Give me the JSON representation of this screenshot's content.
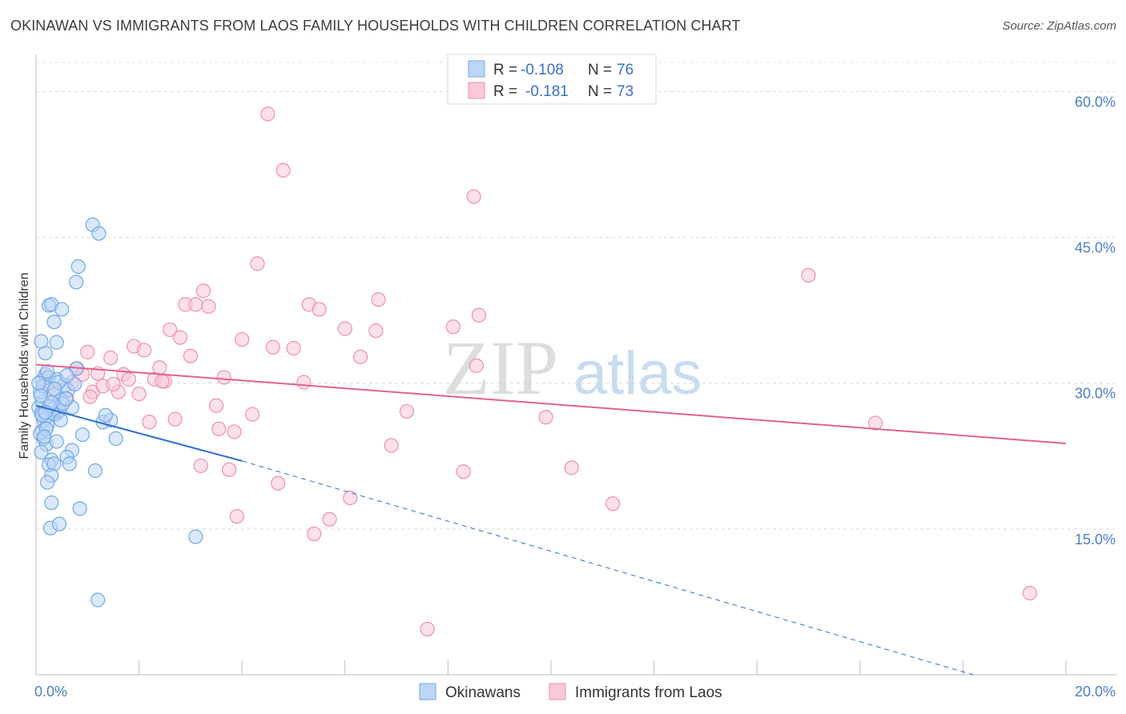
{
  "title": "OKINAWAN VS IMMIGRANTS FROM LAOS FAMILY HOUSEHOLDS WITH CHILDREN CORRELATION CHART",
  "source": "Source: ZipAtlas.com",
  "watermark": {
    "zip": "ZIP",
    "atlas": "atlas"
  },
  "chart_data": {
    "type": "scatter",
    "title": "OKINAWAN VS IMMIGRANTS FROM LAOS FAMILY HOUSEHOLDS WITH CHILDREN CORRELATION CHART",
    "xlabel": "",
    "ylabel": "Family Households with Children",
    "xlim": [
      0,
      20
    ],
    "ylim": [
      0,
      63
    ],
    "x_tick_labels": {
      "left": "0.0%",
      "right": "20.0%"
    },
    "x_minor_ticks": [
      2,
      4,
      6,
      8,
      10,
      12,
      14,
      16,
      18,
      20
    ],
    "y_ticks": [
      {
        "value": 15,
        "label": "15.0%"
      },
      {
        "value": 30,
        "label": "30.0%"
      },
      {
        "value": 45,
        "label": "45.0%"
      },
      {
        "value": 60,
        "label": "60.0%"
      }
    ],
    "legend": [
      {
        "name": "Okinawans",
        "r_label": "R = ",
        "r": "-0.108",
        "n_label": "N = ",
        "n": "76",
        "color": "#6fa8e8",
        "fill": "#bcd6f5"
      },
      {
        "name": "Immigrants from Laos",
        "r_label": "R = ",
        "r": "-0.181",
        "n_label": "N = ",
        "n": "73",
        "color": "#ee8eb0",
        "fill": "#f9c9d9"
      }
    ],
    "series": [
      {
        "name": "Okinawans",
        "color": "#6fa8e8",
        "trend": {
          "x0": 0.0,
          "y0": 27.7,
          "x1": 4.0,
          "y1": 22.0,
          "dash_x1": 18.2,
          "dash_y1": 0.0,
          "color": "#2d6fcc"
        },
        "points": [
          [
            0.05,
            27.5
          ],
          [
            0.1,
            26.9
          ],
          [
            0.12,
            25.1
          ],
          [
            0.08,
            24.8
          ],
          [
            0.15,
            24.3
          ],
          [
            0.2,
            23.7
          ],
          [
            0.1,
            22.9
          ],
          [
            0.3,
            22.1
          ],
          [
            0.25,
            21.6
          ],
          [
            0.35,
            21.7
          ],
          [
            0.3,
            20.5
          ],
          [
            0.22,
            19.8
          ],
          [
            0.3,
            17.7
          ],
          [
            0.28,
            15.1
          ],
          [
            0.45,
            15.5
          ],
          [
            0.12,
            30.3
          ],
          [
            0.18,
            30.9
          ],
          [
            0.25,
            30.6
          ],
          [
            0.4,
            30.4
          ],
          [
            0.55,
            29.8
          ],
          [
            0.62,
            29.3
          ],
          [
            0.35,
            28.8
          ],
          [
            0.48,
            28.3
          ],
          [
            0.7,
            27.5
          ],
          [
            0.12,
            28.1
          ],
          [
            0.3,
            27.3
          ],
          [
            0.42,
            27.1
          ],
          [
            0.38,
            26.8
          ],
          [
            0.2,
            26.5
          ],
          [
            0.15,
            26.2
          ],
          [
            0.22,
            25.7
          ],
          [
            0.18,
            33.1
          ],
          [
            0.1,
            34.3
          ],
          [
            0.4,
            34.2
          ],
          [
            0.35,
            36.3
          ],
          [
            0.25,
            38.0
          ],
          [
            0.3,
            38.1
          ],
          [
            0.5,
            37.6
          ],
          [
            0.78,
            40.4
          ],
          [
            0.82,
            42.0
          ],
          [
            1.1,
            46.3
          ],
          [
            1.22,
            45.4
          ],
          [
            0.75,
            29.9
          ],
          [
            0.78,
            31.5
          ],
          [
            0.7,
            23.1
          ],
          [
            0.6,
            22.4
          ],
          [
            0.65,
            21.7
          ],
          [
            0.9,
            24.7
          ],
          [
            0.85,
            17.1
          ],
          [
            1.15,
            21.0
          ],
          [
            1.3,
            26.0
          ],
          [
            1.45,
            26.2
          ],
          [
            1.55,
            24.3
          ],
          [
            1.35,
            26.7
          ],
          [
            1.2,
            7.7
          ],
          [
            3.1,
            14.2
          ],
          [
            0.08,
            29.1
          ],
          [
            0.14,
            29.7
          ],
          [
            0.45,
            27.2
          ],
          [
            0.52,
            27.9
          ],
          [
            0.32,
            26.9
          ],
          [
            0.2,
            25.3
          ],
          [
            0.16,
            24.5
          ],
          [
            0.26,
            27.6
          ],
          [
            0.58,
            28.4
          ],
          [
            0.44,
            30.1
          ],
          [
            0.05,
            30.0
          ],
          [
            0.22,
            31.2
          ],
          [
            0.36,
            29.4
          ],
          [
            0.12,
            26.7
          ],
          [
            0.4,
            24.0
          ],
          [
            0.09,
            28.7
          ],
          [
            0.6,
            30.8
          ],
          [
            0.3,
            28.0
          ],
          [
            0.18,
            27.0
          ],
          [
            0.48,
            26.2
          ]
        ]
      },
      {
        "name": "Immigrants from Laos",
        "color": "#ee8eb0",
        "trend": {
          "x0": 0.0,
          "y0": 31.9,
          "x1": 20.0,
          "y1": 23.8,
          "color": "#e0628e"
        },
        "points": [
          [
            0.3,
            29.0
          ],
          [
            0.5,
            27.9
          ],
          [
            0.7,
            30.1
          ],
          [
            0.8,
            31.5
          ],
          [
            0.9,
            30.9
          ],
          [
            1.0,
            33.2
          ],
          [
            1.1,
            29.1
          ],
          [
            1.2,
            31.0
          ],
          [
            1.3,
            29.7
          ],
          [
            1.45,
            32.6
          ],
          [
            1.6,
            29.1
          ],
          [
            1.7,
            30.9
          ],
          [
            1.8,
            30.4
          ],
          [
            1.9,
            33.8
          ],
          [
            2.0,
            28.9
          ],
          [
            2.1,
            33.4
          ],
          [
            2.2,
            26.0
          ],
          [
            2.3,
            30.4
          ],
          [
            2.4,
            31.6
          ],
          [
            2.5,
            30.2
          ],
          [
            2.6,
            35.5
          ],
          [
            2.7,
            26.3
          ],
          [
            2.8,
            34.7
          ],
          [
            2.9,
            38.1
          ],
          [
            3.0,
            32.8
          ],
          [
            3.1,
            38.1
          ],
          [
            3.2,
            21.5
          ],
          [
            3.25,
            39.5
          ],
          [
            3.35,
            37.9
          ],
          [
            3.5,
            27.7
          ],
          [
            3.55,
            25.3
          ],
          [
            3.65,
            30.6
          ],
          [
            3.75,
            21.1
          ],
          [
            3.85,
            25.0
          ],
          [
            3.9,
            16.3
          ],
          [
            4.0,
            34.5
          ],
          [
            4.2,
            26.8
          ],
          [
            4.3,
            42.3
          ],
          [
            4.5,
            57.7
          ],
          [
            4.6,
            33.7
          ],
          [
            4.7,
            19.7
          ],
          [
            4.8,
            51.9
          ],
          [
            5.0,
            33.6
          ],
          [
            5.2,
            30.1
          ],
          [
            5.3,
            38.1
          ],
          [
            5.4,
            14.5
          ],
          [
            5.5,
            37.6
          ],
          [
            5.7,
            16.0
          ],
          [
            6.0,
            35.6
          ],
          [
            6.1,
            18.2
          ],
          [
            6.3,
            32.7
          ],
          [
            6.6,
            35.4
          ],
          [
            6.65,
            38.6
          ],
          [
            6.9,
            23.6
          ],
          [
            7.2,
            27.1
          ],
          [
            7.6,
            4.7
          ],
          [
            8.1,
            35.8
          ],
          [
            8.3,
            20.9
          ],
          [
            8.5,
            49.2
          ],
          [
            8.55,
            31.8
          ],
          [
            8.6,
            37.0
          ],
          [
            9.9,
            26.5
          ],
          [
            10.4,
            21.3
          ],
          [
            11.2,
            17.6
          ],
          [
            15.0,
            41.1
          ],
          [
            16.3,
            25.9
          ],
          [
            19.3,
            8.4
          ],
          [
            0.4,
            26.9
          ],
          [
            0.6,
            28.4
          ],
          [
            1.5,
            29.9
          ],
          [
            2.45,
            30.2
          ],
          [
            1.05,
            28.6
          ],
          [
            0.2,
            30.6
          ]
        ]
      }
    ]
  }
}
